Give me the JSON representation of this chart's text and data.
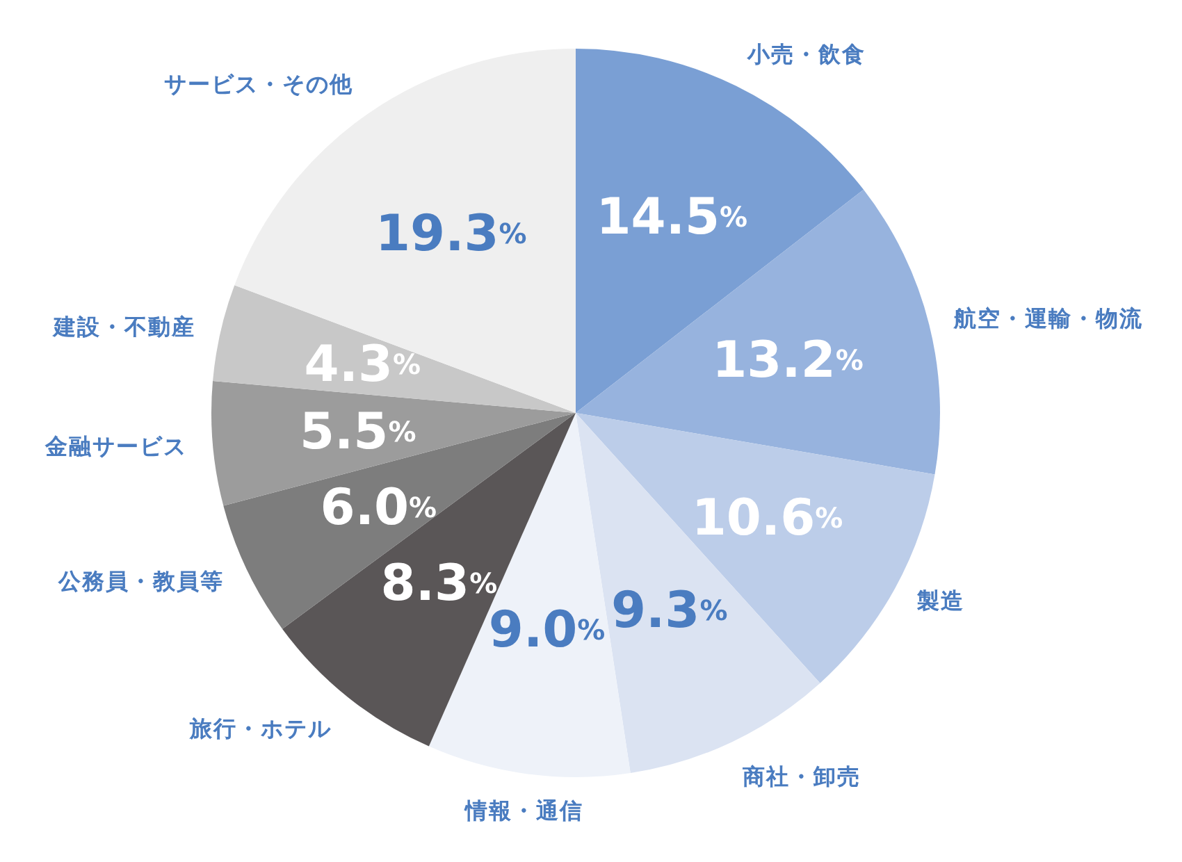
{
  "chart_data": {
    "type": "pie",
    "categories": [
      "小売・飲食",
      "航空・運輸・物流",
      "製造",
      "商社・卸売",
      "情報・通信",
      "旅行・ホテル",
      "公務員・教員等",
      "金融サービス",
      "建設・不動産",
      "サービス・その他"
    ],
    "values": [
      14.5,
      13.2,
      10.6,
      9.3,
      9.0,
      8.3,
      6.0,
      5.5,
      4.3,
      19.3
    ],
    "colors": [
      "#7a9fd4",
      "#97b3de",
      "#bccde9",
      "#dbe3f2",
      "#eef2f9",
      "#5a5657",
      "#7d7d7d",
      "#9c9c9c",
      "#c8c8c8",
      "#efefef"
    ],
    "value_labels": [
      "14.5%",
      "13.2%",
      "10.6%",
      "9.3%",
      "9.0%",
      "8.3%",
      "6.0%",
      "5.5%",
      "4.3%",
      "19.3%"
    ]
  }
}
